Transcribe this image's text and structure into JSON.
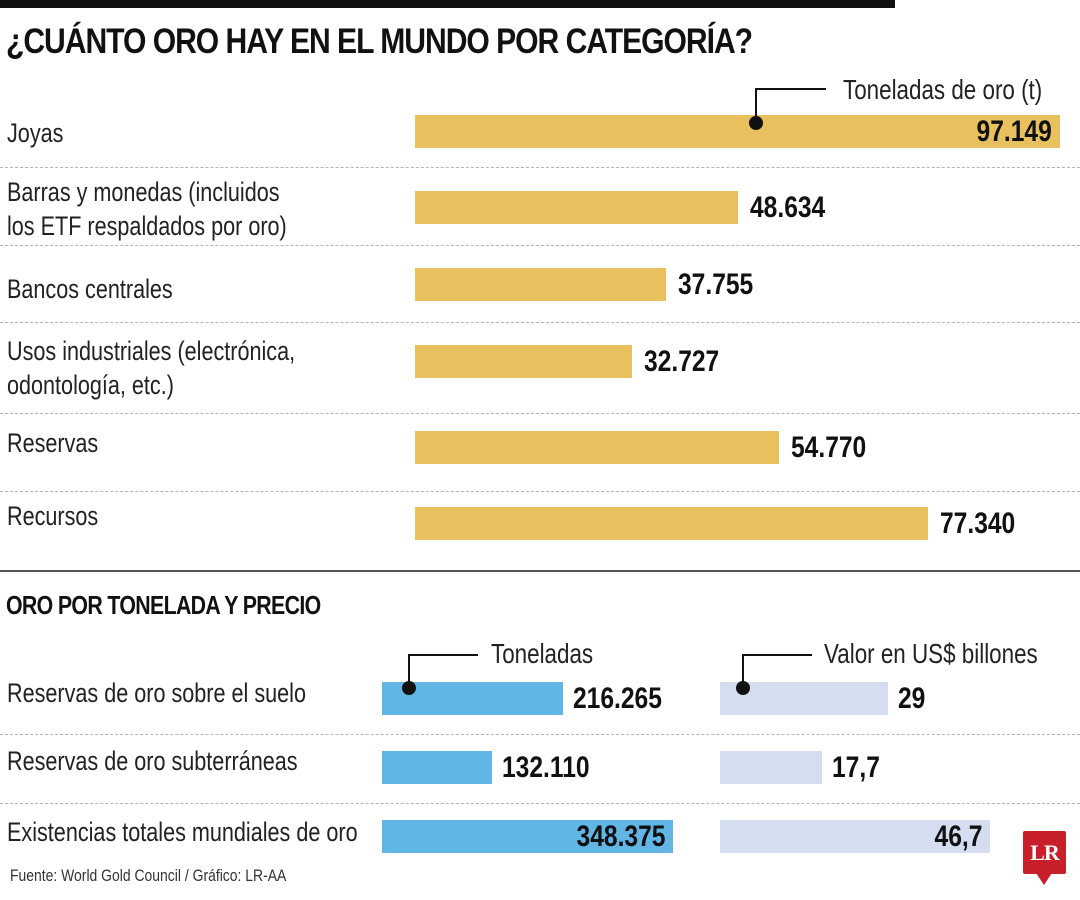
{
  "title": "¿CUÁNTO ORO HAY EN EL MUNDO POR CATEGORÍA?",
  "subtitle": "ORO POR TONELADA Y PRECIO",
  "source": "Fuente: World Gold Council / Gráfico: LR-AA",
  "logo": "LR",
  "colors": {
    "gold": "#e8c15e",
    "blue": "#62b6e6",
    "light_blue": "#d4def0",
    "logo_red": "#c8202a"
  },
  "chart_data": [
    {
      "type": "bar",
      "orientation": "horizontal",
      "title": "¿CUÁNTO ORO HAY EN EL MUNDO POR CATEGORÍA?",
      "series_label": "Toneladas de oro (t)",
      "unit": "toneladas",
      "categories": [
        [
          "Joyas"
        ],
        [
          "Barras y monedas (incluidos",
          "los ETF respaldados por oro)"
        ],
        [
          "Bancos centrales"
        ],
        [
          "Usos industriales (electrónica,",
          "odontología, etc.)"
        ],
        [
          "Reservas"
        ],
        [
          "Recursos"
        ]
      ],
      "values": [
        97149,
        48634,
        37755,
        32727,
        54770,
        77340
      ],
      "value_labels": [
        "97.149",
        "48.634",
        "37.755",
        "32.727",
        "54.770",
        "77.340"
      ],
      "xlim": [
        0,
        97149
      ],
      "grid": false
    },
    {
      "type": "bar",
      "orientation": "horizontal",
      "title": "ORO POR TONELADA Y PRECIO",
      "categories": [
        "Reservas de oro sobre el suelo",
        "Reservas de oro subterráneas",
        "Existencias totales mundiales de oro"
      ],
      "series": [
        {
          "name": "Toneladas",
          "values": [
            216265,
            132110,
            348375
          ],
          "value_labels": [
            "216.265",
            "132.110",
            "348.375"
          ],
          "xlim": [
            0,
            348375
          ]
        },
        {
          "name": "Valor en US$ billones",
          "values": [
            29,
            17.7,
            46.7
          ],
          "value_labels": [
            "29",
            "17,7",
            "46,7"
          ],
          "xlim": [
            0,
            46.7
          ]
        }
      ],
      "grid": false
    }
  ]
}
